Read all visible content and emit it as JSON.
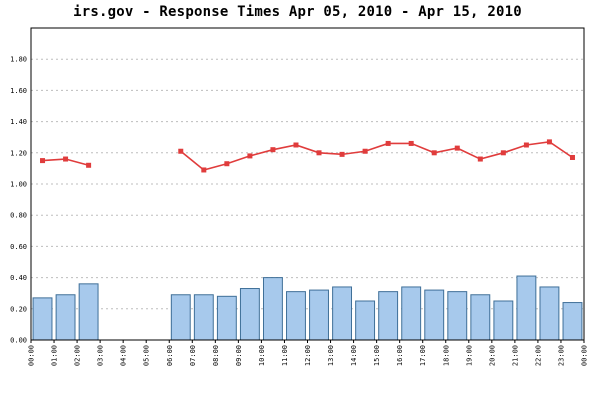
{
  "chart_data": {
    "type": "bar",
    "title": "irs.gov - Response Times Apr 05, 2010 - Apr 15, 2010",
    "xlabel": "",
    "ylabel": "",
    "ylim": [
      0,
      2.0
    ],
    "grid": true,
    "x_ticks": [
      "00:00",
      "01:00",
      "02:00",
      "03:00",
      "04:00",
      "05:00",
      "06:00",
      "07:00",
      "08:00",
      "09:00",
      "10:00",
      "11:00",
      "12:00",
      "13:00",
      "14:00",
      "15:00",
      "16:00",
      "17:00",
      "18:00",
      "19:00",
      "20:00",
      "21:00",
      "22:00",
      "23:00",
      "00:00"
    ],
    "y_ticks": [
      "0.00",
      "0.20",
      "0.40",
      "0.60",
      "0.80",
      "1.00",
      "1.20",
      "1.40",
      "1.60",
      "1.80"
    ],
    "series": [
      {
        "type": "bar",
        "color": "#a7c9ec",
        "edge_color": "#3f6f98",
        "values": [
          0.27,
          0.29,
          0.36,
          null,
          null,
          null,
          0.29,
          0.29,
          0.28,
          0.33,
          0.4,
          0.31,
          0.32,
          0.34,
          0.25,
          0.31,
          0.34,
          0.32,
          0.31,
          0.29,
          0.25,
          0.41,
          0.34,
          0.24
        ]
      },
      {
        "type": "line",
        "color": "#e03c3c",
        "values": [
          1.15,
          1.16,
          1.12,
          null,
          null,
          null,
          1.21,
          1.09,
          1.13,
          1.18,
          1.22,
          1.25,
          1.2,
          1.19,
          1.21,
          1.26,
          1.26,
          1.2,
          1.23,
          1.16,
          1.2,
          1.25,
          1.27,
          1.17
        ]
      }
    ]
  }
}
